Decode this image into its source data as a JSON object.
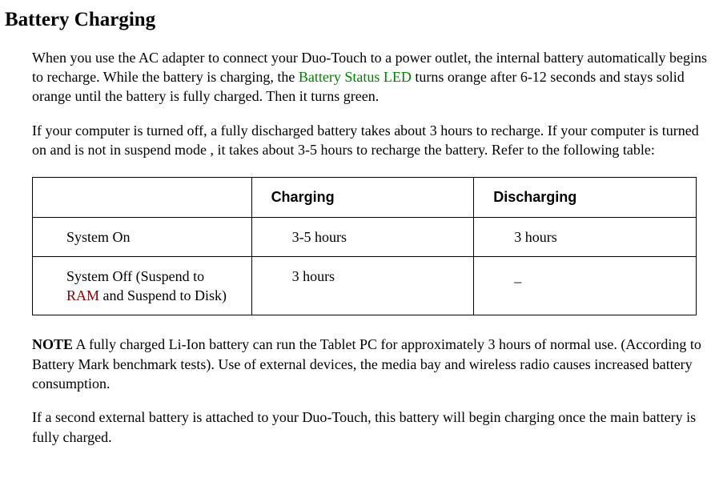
{
  "heading": "Battery Charging",
  "para1": {
    "pre": "When you use the AC adapter to connect your Duo-Touch to a power outlet, the internal battery automatically begins to recharge. While the battery is charging, the ",
    "link": "Battery Status LED",
    "post": " turns orange after 6-12 seconds and stays solid orange until the battery is fully charged. Then it turns green."
  },
  "para2": "If your computer is turned off, a fully discharged battery takes about 3 hours to recharge. If your computer is turned on and is not in suspend mode , it takes about 3-5 hours to recharge the battery. Refer to the following table:",
  "table": {
    "headers": [
      "",
      "Charging",
      "Discharging"
    ],
    "rows": [
      {
        "label_pre": "System On",
        "label_link": "",
        "label_post": "",
        "c1": "3-5 hours",
        "c2": "3 hours"
      },
      {
        "label_pre": "System Off (Suspend to ",
        "label_link": "RAM",
        "label_post": " and Suspend to Disk)",
        "c1": "3 hours",
        "c2": "_"
      }
    ],
    "header_fontsize": 18,
    "cell_fontsize": 18,
    "border_color": "#000000",
    "background_color": "#ffffff",
    "col_widths": [
      0.33,
      0.335,
      0.335
    ]
  },
  "para3": {
    "label": "NOTE",
    "text": "  A fully charged Li-Ion battery can run the Tablet PC for approximately 3 hours of normal use. (According to Battery Mark benchmark tests).  Use of external devices, the media bay and wireless radio causes increased battery consumption."
  },
  "para4": "If a second external battery is attached to your Duo-Touch, this battery will begin charging once the main battery is fully charged.",
  "colors": {
    "link_green": "#008000",
    "link_red": "#8b0000",
    "text": "#000000",
    "background": "#ffffff"
  }
}
